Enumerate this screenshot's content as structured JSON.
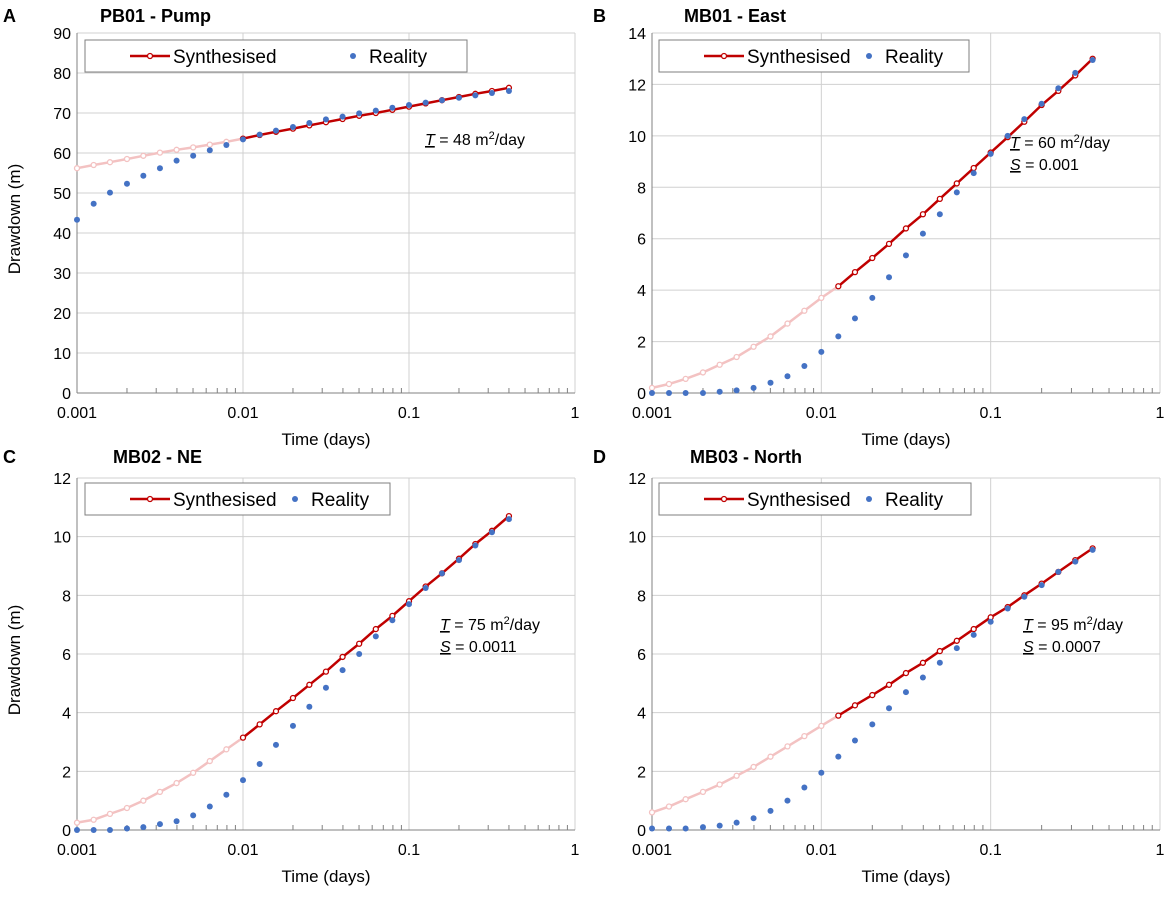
{
  "chart_data": [
    {
      "panel_label": "A",
      "title": "PB01 - Pump",
      "type": "scatter",
      "xscale": "log",
      "xlim": [
        0.001,
        1
      ],
      "ylim": [
        0,
        90
      ],
      "xticks": [
        "0.001",
        "0.01",
        "0.1",
        "1"
      ],
      "yticks": [
        "0",
        "10",
        "20",
        "30",
        "40",
        "50",
        "60",
        "70",
        "80",
        "90"
      ],
      "xlabel": "Time (days)",
      "ylabel": "Drawdown (m)",
      "legend": {
        "synth": "Synthesised",
        "real": "Reality",
        "position": "top"
      },
      "annotation": {
        "t_sym": "T",
        "t_value": " = 48 m",
        "t_sup": "2",
        "t_unit": "/day",
        "s_sym": "",
        "s_value": ""
      },
      "synthesised": {
        "x": [
          0.001,
          0.00126,
          0.00158,
          0.002,
          0.00251,
          0.00316,
          0.00398,
          0.00501,
          0.00631,
          0.00794,
          0.01,
          0.0126,
          0.0158,
          0.02,
          0.0251,
          0.0316,
          0.0398,
          0.0501,
          0.0631,
          0.0794,
          0.1,
          0.126,
          0.158,
          0.2,
          0.251,
          0.316,
          0.4
        ],
        "y": [
          56.2,
          57.0,
          57.7,
          58.5,
          59.3,
          60.1,
          60.8,
          61.4,
          62.1,
          62.8,
          63.6,
          64.5,
          65.3,
          66.1,
          66.9,
          67.7,
          68.5,
          69.3,
          70.0,
          70.8,
          71.6,
          72.4,
          73.2,
          74.0,
          74.8,
          75.5,
          76.3
        ]
      },
      "reality": {
        "x": [
          0.001,
          0.00126,
          0.00158,
          0.002,
          0.00251,
          0.00316,
          0.00398,
          0.00501,
          0.00631,
          0.00794,
          0.01,
          0.0126,
          0.0158,
          0.02,
          0.0251,
          0.0316,
          0.0398,
          0.0501,
          0.0631,
          0.0794,
          0.1,
          0.126,
          0.158,
          0.2,
          0.251,
          0.316,
          0.4
        ],
        "y": [
          43.3,
          47.3,
          50.1,
          52.3,
          54.3,
          56.2,
          58.1,
          59.3,
          60.7,
          62.0,
          63.4,
          64.6,
          65.6,
          66.5,
          67.5,
          68.4,
          69.1,
          69.9,
          70.6,
          71.3,
          72.0,
          72.6,
          73.2,
          73.8,
          74.4,
          75.0,
          75.5
        ]
      },
      "fit_start": 0.01
    },
    {
      "panel_label": "B",
      "title": "MB01 - East",
      "type": "scatter",
      "xscale": "log",
      "xlim": [
        0.001,
        1
      ],
      "ylim": [
        0,
        14
      ],
      "xticks": [
        "0.001",
        "0.01",
        "0.1",
        "1"
      ],
      "yticks": [
        "0",
        "2",
        "4",
        "6",
        "8",
        "10",
        "12",
        "14"
      ],
      "xlabel": "Time (days)",
      "ylabel": "",
      "legend": {
        "synth": "Synthesised",
        "real": "Reality",
        "position": "top"
      },
      "annotation": {
        "t_sym": "T",
        "t_value": " = 60 m",
        "t_sup": "2",
        "t_unit": "/day",
        "s_sym": "S",
        "s_value": " = 0.001"
      },
      "synthesised": {
        "x": [
          0.001,
          0.00126,
          0.00158,
          0.002,
          0.00251,
          0.00316,
          0.00398,
          0.00501,
          0.00631,
          0.00794,
          0.01,
          0.0126,
          0.0158,
          0.02,
          0.0251,
          0.0316,
          0.0398,
          0.0501,
          0.0631,
          0.0794,
          0.1,
          0.126,
          0.158,
          0.2,
          0.251,
          0.316,
          0.4
        ],
        "y": [
          0.2,
          0.35,
          0.55,
          0.8,
          1.1,
          1.4,
          1.8,
          2.2,
          2.7,
          3.2,
          3.7,
          4.15,
          4.7,
          5.25,
          5.8,
          6.4,
          6.95,
          7.55,
          8.15,
          8.75,
          9.35,
          9.95,
          10.55,
          11.2,
          11.75,
          12.35,
          13.0
        ]
      },
      "reality": {
        "x": [
          0.001,
          0.00126,
          0.00158,
          0.002,
          0.00251,
          0.00316,
          0.00398,
          0.00501,
          0.00631,
          0.00794,
          0.01,
          0.0126,
          0.0158,
          0.02,
          0.0251,
          0.0316,
          0.0398,
          0.0501,
          0.0631,
          0.0794,
          0.1,
          0.126,
          0.158,
          0.2,
          0.251,
          0.316,
          0.4
        ],
        "y": [
          0.0,
          0.0,
          0.0,
          0.0,
          0.05,
          0.1,
          0.2,
          0.4,
          0.65,
          1.05,
          1.6,
          2.2,
          2.9,
          3.7,
          4.5,
          5.35,
          6.2,
          6.95,
          7.8,
          8.55,
          9.3,
          10.0,
          10.65,
          11.25,
          11.85,
          12.45,
          12.95
        ]
      },
      "fit_start": 0.0126
    },
    {
      "panel_label": "C",
      "title": "MB02 - NE",
      "type": "scatter",
      "xscale": "log",
      "xlim": [
        0.001,
        1
      ],
      "ylim": [
        0,
        12
      ],
      "xticks": [
        "0.001",
        "0.01",
        "0.1",
        "1"
      ],
      "yticks": [
        "0",
        "2",
        "4",
        "6",
        "8",
        "10",
        "12"
      ],
      "xlabel": "Time (days)",
      "ylabel": "Drawdown (m)",
      "legend": {
        "synth": "Synthesised",
        "real": "Reality",
        "position": "top"
      },
      "annotation": {
        "t_sym": "T",
        "t_value": " = 75 m",
        "t_sup": "2",
        "t_unit": "/day",
        "s_sym": "S",
        "s_value": " = 0.0011"
      },
      "synthesised": {
        "x": [
          0.001,
          0.00126,
          0.00158,
          0.002,
          0.00251,
          0.00316,
          0.00398,
          0.00501,
          0.00631,
          0.00794,
          0.01,
          0.0126,
          0.0158,
          0.02,
          0.0251,
          0.0316,
          0.0398,
          0.0501,
          0.0631,
          0.0794,
          0.1,
          0.126,
          0.158,
          0.2,
          0.251,
          0.316,
          0.4
        ],
        "y": [
          0.25,
          0.35,
          0.55,
          0.75,
          1.0,
          1.3,
          1.6,
          1.95,
          2.35,
          2.75,
          3.15,
          3.6,
          4.05,
          4.5,
          4.95,
          5.4,
          5.9,
          6.35,
          6.85,
          7.3,
          7.8,
          8.3,
          8.75,
          9.25,
          9.75,
          10.2,
          10.7
        ]
      },
      "reality": {
        "x": [
          0.001,
          0.00126,
          0.00158,
          0.002,
          0.00251,
          0.00316,
          0.00398,
          0.00501,
          0.00631,
          0.00794,
          0.01,
          0.0126,
          0.0158,
          0.02,
          0.0251,
          0.0316,
          0.0398,
          0.0501,
          0.0631,
          0.0794,
          0.1,
          0.126,
          0.158,
          0.2,
          0.251,
          0.316,
          0.4
        ],
        "y": [
          0.0,
          0.0,
          0.0,
          0.05,
          0.1,
          0.2,
          0.3,
          0.5,
          0.8,
          1.2,
          1.7,
          2.25,
          2.9,
          3.55,
          4.2,
          4.85,
          5.45,
          6.0,
          6.6,
          7.15,
          7.7,
          8.25,
          8.75,
          9.2,
          9.7,
          10.15,
          10.6
        ]
      },
      "fit_start": 0.01
    },
    {
      "panel_label": "D",
      "title": "MB03 - North",
      "type": "scatter",
      "xscale": "log",
      "xlim": [
        0.001,
        1
      ],
      "ylim": [
        0,
        12
      ],
      "xticks": [
        "0.001",
        "0.01",
        "0.1",
        "1"
      ],
      "yticks": [
        "0",
        "2",
        "4",
        "6",
        "8",
        "10",
        "12"
      ],
      "xlabel": "Time (days)",
      "ylabel": "",
      "legend": {
        "synth": "Synthesised",
        "real": "Reality",
        "position": "top"
      },
      "annotation": {
        "t_sym": "T",
        "t_value": " = 95 m",
        "t_sup": "2",
        "t_unit": "/day",
        "s_sym": "S",
        "s_value": " = 0.0007"
      },
      "synthesised": {
        "x": [
          0.001,
          0.00126,
          0.00158,
          0.002,
          0.00251,
          0.00316,
          0.00398,
          0.00501,
          0.00631,
          0.00794,
          0.01,
          0.0126,
          0.0158,
          0.02,
          0.0251,
          0.0316,
          0.0398,
          0.0501,
          0.0631,
          0.0794,
          0.1,
          0.126,
          0.158,
          0.2,
          0.251,
          0.316,
          0.4
        ],
        "y": [
          0.6,
          0.8,
          1.05,
          1.3,
          1.55,
          1.85,
          2.15,
          2.5,
          2.85,
          3.2,
          3.55,
          3.9,
          4.25,
          4.6,
          4.95,
          5.35,
          5.7,
          6.1,
          6.45,
          6.85,
          7.25,
          7.6,
          8.0,
          8.4,
          8.8,
          9.2,
          9.6
        ]
      },
      "reality": {
        "x": [
          0.001,
          0.00126,
          0.00158,
          0.002,
          0.00251,
          0.00316,
          0.00398,
          0.00501,
          0.00631,
          0.00794,
          0.01,
          0.0126,
          0.0158,
          0.02,
          0.0251,
          0.0316,
          0.0398,
          0.0501,
          0.0631,
          0.0794,
          0.1,
          0.126,
          0.158,
          0.2,
          0.251,
          0.316,
          0.4
        ],
        "y": [
          0.05,
          0.05,
          0.05,
          0.1,
          0.15,
          0.25,
          0.4,
          0.65,
          1.0,
          1.45,
          1.95,
          2.5,
          3.05,
          3.6,
          4.15,
          4.7,
          5.2,
          5.7,
          6.2,
          6.65,
          7.1,
          7.55,
          7.95,
          8.35,
          8.8,
          9.15,
          9.55
        ]
      },
      "fit_start": 0.0126
    }
  ],
  "colors": {
    "synth_line": "#c00000",
    "synth_faded": "#f3c2c2",
    "reality": "#4472c4",
    "grid": "#d0d0d0",
    "axis": "#808080"
  }
}
